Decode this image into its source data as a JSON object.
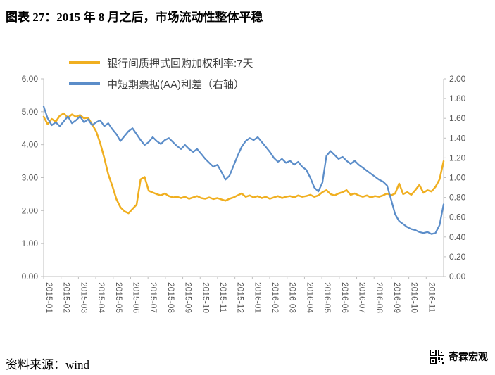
{
  "page": {
    "title": "图表 27：2015 年 8 月之后，市场流动性整体平稳",
    "source": "资料来源：wind",
    "brand": "奇霖宏观"
  },
  "colors": {
    "repo_line": "#F0AF20",
    "spread_line": "#5B8DC9",
    "axis_line": "#BFBFBF",
    "axis_text": "#595959"
  },
  "chart_data": {
    "type": "line",
    "legend": [
      {
        "label": "银行间质押式回购加权利率:7天"
      },
      {
        "label": "中短期票据(AA)利差（右轴）"
      }
    ],
    "x_tick_labels": [
      "2015-01",
      "2015-02",
      "2015-03",
      "2015-04",
      "2015-05",
      "2015-06",
      "2015-07",
      "2015-08",
      "2015-09",
      "2015-10",
      "2015-11",
      "2015-12",
      "2016-01",
      "2016-02",
      "2016-03",
      "2016-04",
      "2016-05",
      "2016-06",
      "2016-07",
      "2016-08",
      "2016-09",
      "2016-10",
      "2016-11"
    ],
    "left_axis": {
      "min": 0,
      "max": 6,
      "tick_labels": [
        "6.00",
        "5.00",
        "4.00",
        "3.00",
        "2.00",
        "1.00",
        "0.00"
      ]
    },
    "right_axis": {
      "min": 0,
      "max": 2,
      "tick_labels": [
        "2.00",
        "1.80",
        "1.60",
        "1.40",
        "1.20",
        "1.00",
        "0.80",
        "0.60",
        "0.40",
        "0.20",
        "0.00"
      ]
    },
    "series": [
      {
        "name": "银行间质押式回购加权利率:7天",
        "axis": "left",
        "color": "#F0AF20",
        "stroke_width": 2.5,
        "values": [
          4.85,
          4.62,
          4.78,
          4.7,
          4.88,
          4.95,
          4.82,
          4.92,
          4.85,
          4.9,
          4.8,
          4.82,
          4.62,
          4.4,
          4.05,
          3.6,
          3.1,
          2.75,
          2.35,
          2.1,
          1.98,
          1.92,
          2.05,
          2.18,
          2.95,
          3.02,
          2.6,
          2.55,
          2.5,
          2.46,
          2.52,
          2.44,
          2.4,
          2.42,
          2.38,
          2.42,
          2.36,
          2.4,
          2.44,
          2.38,
          2.36,
          2.4,
          2.35,
          2.38,
          2.34,
          2.3,
          2.36,
          2.4,
          2.46,
          2.52,
          2.42,
          2.46,
          2.4,
          2.44,
          2.38,
          2.42,
          2.36,
          2.4,
          2.44,
          2.38,
          2.42,
          2.44,
          2.4,
          2.46,
          2.42,
          2.44,
          2.48,
          2.42,
          2.46,
          2.56,
          2.62,
          2.5,
          2.46,
          2.52,
          2.56,
          2.62,
          2.48,
          2.52,
          2.46,
          2.42,
          2.46,
          2.4,
          2.44,
          2.42,
          2.46,
          2.52,
          2.46,
          2.52,
          2.82,
          2.5,
          2.56,
          2.48,
          2.62,
          2.78,
          2.54,
          2.62,
          2.58,
          2.72,
          2.95,
          3.5
        ]
      },
      {
        "name": "中短期票据(AA)利差（右轴）",
        "axis": "right",
        "color": "#5B8DC9",
        "stroke_width": 2.25,
        "values": [
          1.72,
          1.6,
          1.53,
          1.56,
          1.52,
          1.57,
          1.62,
          1.55,
          1.58,
          1.62,
          1.56,
          1.59,
          1.53,
          1.56,
          1.58,
          1.52,
          1.55,
          1.49,
          1.44,
          1.37,
          1.42,
          1.47,
          1.5,
          1.44,
          1.38,
          1.33,
          1.36,
          1.41,
          1.37,
          1.34,
          1.38,
          1.4,
          1.36,
          1.32,
          1.29,
          1.33,
          1.29,
          1.26,
          1.29,
          1.24,
          1.19,
          1.15,
          1.11,
          1.13,
          1.06,
          0.98,
          1.02,
          1.12,
          1.22,
          1.31,
          1.37,
          1.4,
          1.38,
          1.41,
          1.36,
          1.31,
          1.26,
          1.2,
          1.16,
          1.19,
          1.15,
          1.17,
          1.13,
          1.16,
          1.11,
          1.08,
          1.0,
          0.9,
          0.86,
          0.95,
          1.22,
          1.27,
          1.23,
          1.19,
          1.21,
          1.17,
          1.14,
          1.17,
          1.13,
          1.1,
          1.07,
          1.04,
          1.01,
          0.98,
          0.96,
          0.92,
          0.78,
          0.63,
          0.56,
          0.53,
          0.5,
          0.48,
          0.47,
          0.45,
          0.44,
          0.45,
          0.43,
          0.44,
          0.52,
          0.73
        ]
      }
    ]
  }
}
